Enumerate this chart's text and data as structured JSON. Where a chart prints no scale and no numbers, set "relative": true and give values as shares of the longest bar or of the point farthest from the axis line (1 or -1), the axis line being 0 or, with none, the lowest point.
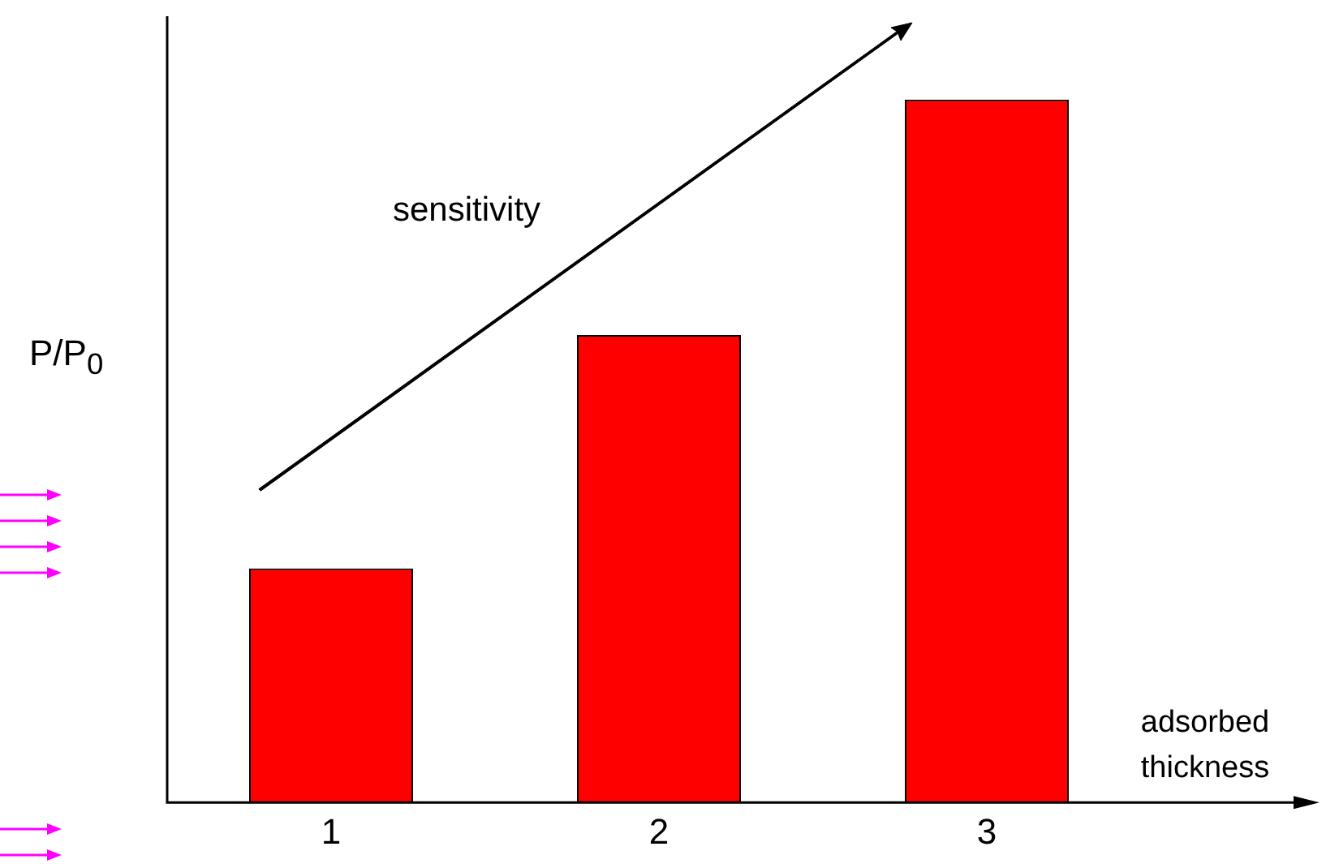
{
  "chart_data": {
    "type": "bar",
    "categories": [
      "1",
      "2",
      "3"
    ],
    "values": [
      0.333,
      0.665,
      1
    ],
    "color": "#ff0000",
    "relative": true,
    "ylabel": "P/P$_{0}$",
    "xlabel": "adsorbed\nthickness",
    "annotations": [
      "sensitivity"
    ],
    "grid": false,
    "legend": false,
    "tick_labels": "x"
  }
}
